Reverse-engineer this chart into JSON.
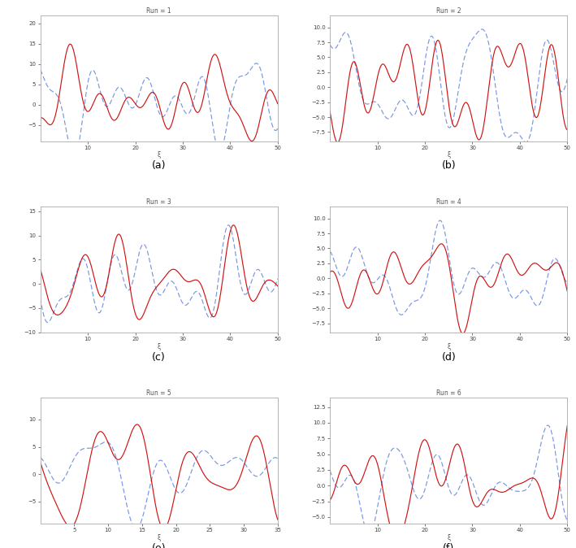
{
  "subplot_titles": [
    "Run = 1",
    "Run = 2",
    "Run = 3",
    "Run = 4",
    "Run = 5",
    "Run = 6"
  ],
  "subplot_labels": [
    "(a)",
    "(b)",
    "(c)",
    "(d)",
    "(e)",
    "(f)"
  ],
  "solid_color": "#cc0000",
  "dashed_color": "#6688dd",
  "background": "#ffffff",
  "figsize": [
    7.09,
    6.74
  ],
  "dpi": 100,
  "panel_configs": [
    {
      "x_end": 50,
      "y_min": -9,
      "y_max": 22,
      "y_ticks": [
        -8,
        -6,
        -4,
        -2,
        0,
        2,
        4,
        6,
        8,
        10,
        12,
        14,
        16,
        18,
        20
      ],
      "x_ticks": [
        0,
        10,
        20,
        30,
        40,
        50
      ],
      "row": 0,
      "col": 0,
      "s_seed": 1,
      "d_seed": 2
    },
    {
      "x_end": 50,
      "y_min": -9,
      "y_max": 12,
      "y_ticks": [
        -8,
        -6,
        -4,
        -2,
        0,
        2,
        4,
        6,
        8,
        10
      ],
      "x_ticks": [
        0,
        10,
        20,
        30,
        40,
        50
      ],
      "row": 0,
      "col": 1,
      "s_seed": 3,
      "d_seed": 4
    },
    {
      "x_end": 50,
      "y_min": -10,
      "y_max": 16,
      "y_ticks": [
        -8,
        -6,
        -4,
        -2,
        0,
        2,
        4,
        6,
        8,
        10,
        12,
        14
      ],
      "x_ticks": [
        0,
        10,
        20,
        30,
        40,
        50
      ],
      "row": 1,
      "col": 0,
      "s_seed": 5,
      "d_seed": 6
    },
    {
      "x_end": 50,
      "y_min": -9,
      "y_max": 12,
      "y_ticks": [
        -8,
        -6,
        -4,
        -2,
        0,
        2,
        4,
        6,
        8,
        10
      ],
      "x_ticks": [
        0,
        10,
        20,
        30,
        40,
        50
      ],
      "row": 1,
      "col": 1,
      "s_seed": 7,
      "d_seed": 8
    },
    {
      "x_end": 35,
      "y_min": -9,
      "y_max": 14,
      "y_ticks": [
        -8,
        -6,
        -4,
        -2,
        0,
        2,
        4,
        6,
        8,
        10,
        12
      ],
      "x_ticks": [
        0,
        5,
        10,
        15,
        20,
        25,
        30,
        35
      ],
      "row": 2,
      "col": 0,
      "s_seed": 9,
      "d_seed": 10
    },
    {
      "x_end": 50,
      "y_min": -6,
      "y_max": 14,
      "y_ticks": [
        -4,
        -2,
        0,
        2,
        4,
        6,
        8,
        10,
        12
      ],
      "x_ticks": [
        0,
        10,
        20,
        30,
        40,
        50
      ],
      "row": 2,
      "col": 1,
      "s_seed": 11,
      "d_seed": 12
    }
  ]
}
